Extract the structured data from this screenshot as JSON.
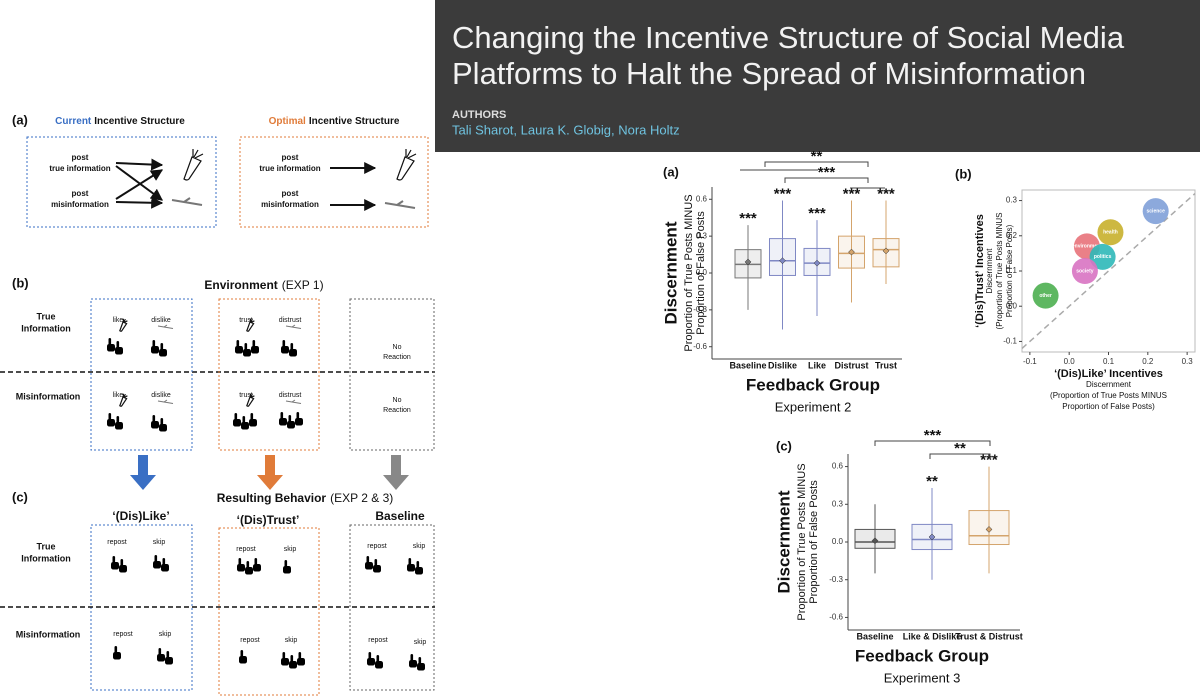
{
  "header": {
    "title": [
      "Changing the Incentive Structure of Social Media",
      "Platforms to Halt the Spread of Misinformation"
    ],
    "authors_label": "AUTHORS",
    "authors": "Tali Sharot, Laura K. Globig, Nora Holtz"
  },
  "diagram": {
    "a": {
      "panel": "(a)",
      "current": {
        "highlight": "Current",
        "rest": "Incentive Structure"
      },
      "optimal": {
        "highlight": "Optimal",
        "rest": "Incentive Structure"
      },
      "post_true": [
        "post",
        "true information"
      ],
      "post_mis": [
        "post",
        "misinformation"
      ]
    },
    "b": {
      "panel": "(b)",
      "title": "Environment",
      "title_note": "(EXP 1)",
      "row_true": [
        "True",
        "Information"
      ],
      "row_mis": "Misinformation",
      "like": "like",
      "dislike": "dislike",
      "trust": "trust",
      "distrust": "distrust",
      "no_reaction": [
        "No",
        "Reaction"
      ]
    },
    "c": {
      "panel": "(c)",
      "title": "Resulting Behavior",
      "title_note": "(EXP 2 & 3)",
      "columns": [
        "‘(Dis)Like’",
        "‘(Dis)Trust’",
        "Baseline"
      ],
      "row_true": [
        "True",
        "Information"
      ],
      "row_mis": "Misinformation",
      "repost": "repost",
      "skip": "skip"
    }
  },
  "chart_data": [
    {
      "type": "box",
      "panel": "(a)",
      "categories": [
        "Baseline",
        "Dislike",
        "Like",
        "Distrust",
        "Trust"
      ],
      "boxes": [
        {
          "min": -0.3,
          "q1": -0.04,
          "median": 0.07,
          "q3": 0.19,
          "max": 0.39,
          "mean": 0.09,
          "color": "#777777"
        },
        {
          "min": -0.46,
          "q1": -0.02,
          "median": 0.1,
          "q3": 0.28,
          "max": 0.59,
          "mean": 0.1,
          "color": "#7f88c4"
        },
        {
          "min": -0.35,
          "q1": -0.02,
          "median": 0.08,
          "q3": 0.2,
          "max": 0.43,
          "mean": 0.08,
          "color": "#7f88c4"
        },
        {
          "min": -0.24,
          "q1": 0.04,
          "median": 0.16,
          "q3": 0.3,
          "max": 0.59,
          "mean": 0.17,
          "color": "#d4a46c"
        },
        {
          "min": -0.09,
          "q1": 0.05,
          "median": 0.19,
          "q3": 0.28,
          "max": 0.59,
          "mean": 0.18,
          "color": "#d4a46c"
        }
      ],
      "significance": [
        "***",
        "***",
        "***",
        "***",
        "***"
      ],
      "brackets": [
        "**",
        "***"
      ],
      "ylim": [
        -0.7,
        0.7
      ],
      "yticks": [
        0.6,
        0.3,
        {
          "value": 0,
          "label": "0.0"
        },
        -0.3,
        -0.6
      ],
      "ylabel": "Discernment",
      "ylabel_sub": [
        "Proportion of True Posts MINUS",
        "Proportion of False Posts"
      ],
      "xlabel": "Feedback Group",
      "caption": "Experiment 2"
    },
    {
      "type": "bubble",
      "panel": "(b)",
      "x": [
        0.22,
        0.105,
        0.045,
        0.085,
        0.04,
        -0.06
      ],
      "values": [
        0.27,
        0.21,
        0.17,
        0.14,
        0.1,
        0.03
      ],
      "labels": [
        "science",
        "health",
        "environment",
        "politics",
        "society",
        "other"
      ],
      "colors": [
        "#7fa0d8",
        "#c8b02c",
        "#e8727a",
        "#2eb8b8",
        "#d873c2",
        "#4caf50"
      ],
      "xlim": [
        -0.12,
        0.32
      ],
      "ylim": [
        -0.13,
        0.33
      ],
      "xticks": [
        -0.1,
        {
          "value": 0,
          "label": "0.0"
        },
        0.1,
        0.2,
        0.3
      ],
      "yticks": [
        0.3,
        0.2,
        0.1,
        {
          "value": 0,
          "label": "0.0"
        },
        -0.1
      ],
      "xlabel": "‘(Dis)Like’ Incentives",
      "xlabel_sub": [
        "Discernment",
        "(Proportion of True Posts MINUS",
        "Proportion of False Posts)"
      ],
      "ylabel": "‘(Dis)Trust’ Incentives",
      "ylabel_sub": [
        "Discernment",
        "(Proportion of True Posts MINUS",
        "Proportion of False Posts)"
      ]
    },
    {
      "type": "box",
      "panel": "(c)",
      "categories": [
        "Baseline",
        "Like & Dislike",
        "Trust & Distrust"
      ],
      "boxes": [
        {
          "min": -0.25,
          "q1": -0.05,
          "median": 0,
          "q3": 0.1,
          "max": 0.3,
          "mean": 0.01,
          "color": "#555555"
        },
        {
          "min": -0.3,
          "q1": -0.06,
          "median": 0.02,
          "q3": 0.14,
          "max": 0.43,
          "mean": 0.04,
          "color": "#7f88c4"
        },
        {
          "min": -0.25,
          "q1": -0.02,
          "median": 0.05,
          "q3": 0.25,
          "max": 0.6,
          "mean": 0.1,
          "color": "#d4a46c"
        }
      ],
      "significance": [
        null,
        "**",
        "***"
      ],
      "brackets": [
        "***",
        "**"
      ],
      "ylim": [
        -0.7,
        0.7
      ],
      "yticks": [
        0.6,
        0.3,
        {
          "value": 0,
          "label": "0.0"
        },
        -0.3,
        -0.6
      ],
      "ylabel": "Discernment",
      "ylabel_sub": [
        "Proportion of True Posts MINUS",
        "Proportion of False Posts"
      ],
      "xlabel": "Feedback Group",
      "caption": "Experiment 3"
    }
  ]
}
